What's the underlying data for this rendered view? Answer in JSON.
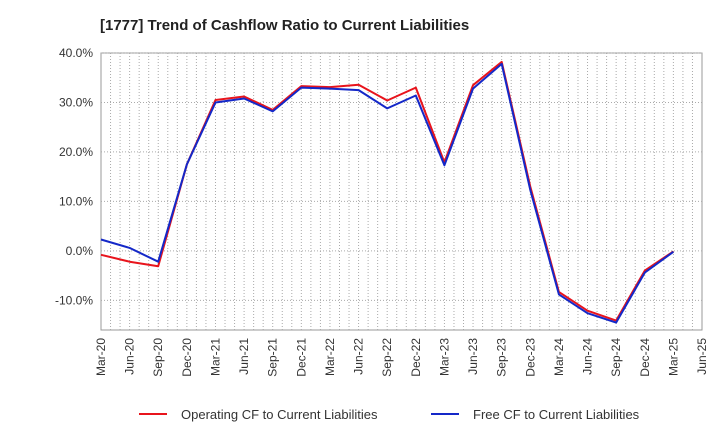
{
  "chart_data": {
    "type": "line",
    "title": "[1777]  Trend of Cashflow Ratio to Current Liabilities",
    "xlabel": "",
    "ylabel": "",
    "ylim": [
      -16,
      40
    ],
    "yticks": [
      -10,
      0,
      10,
      20,
      30,
      40
    ],
    "ytick_labels": [
      "-10.0%",
      "0.0%",
      "10.0%",
      "20.0%",
      "30.0%",
      "40.0%"
    ],
    "x_tick_labels": [
      "Mar-20",
      "Jun-20",
      "Sep-20",
      "Dec-20",
      "Mar-21",
      "Jun-21",
      "Sep-21",
      "Dec-21",
      "Mar-22",
      "Jun-22",
      "Sep-22",
      "Dec-22",
      "Mar-23",
      "Jun-23",
      "Sep-23",
      "Dec-23",
      "Mar-24",
      "Jun-24",
      "Sep-24",
      "Dec-24",
      "Mar-25",
      "Jun-25"
    ],
    "grid": true,
    "legend_position": "bottom",
    "series": [
      {
        "name": "Operating CF to Current Liabilities",
        "color": "#e8141c",
        "values": [
          -0.8,
          -2.2,
          -3.1,
          17.5,
          30.5,
          31.2,
          28.5,
          33.3,
          33.1,
          33.6,
          30.4,
          33.0,
          17.9,
          33.5,
          38.2,
          13.0,
          -8.3,
          -12.1,
          -14.1,
          -4.0,
          -0.1,
          null
        ]
      },
      {
        "name": "Free CF to Current Liabilities",
        "color": "#1428c8",
        "values": [
          2.3,
          0.6,
          -2.2,
          17.5,
          30.0,
          30.8,
          28.2,
          33.0,
          32.8,
          32.5,
          28.8,
          31.4,
          17.3,
          32.8,
          37.8,
          12.3,
          -8.8,
          -12.6,
          -14.5,
          -4.4,
          -0.2,
          null
        ]
      }
    ]
  }
}
